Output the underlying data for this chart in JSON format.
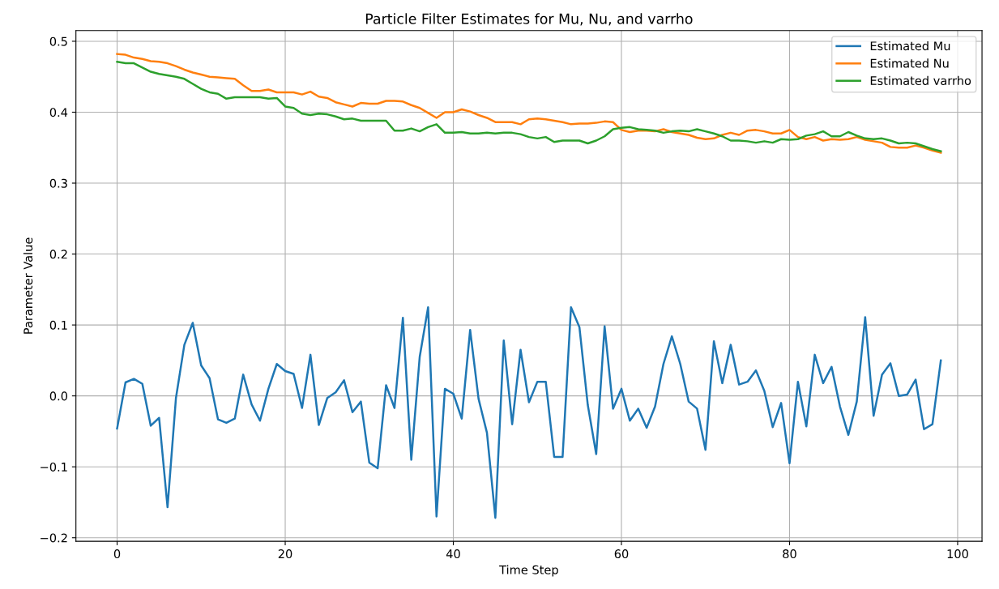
{
  "chart_data": {
    "type": "line",
    "title": "Particle Filter Estimates for Mu, Nu, and varrho",
    "xlabel": "Time Step",
    "ylabel": "Parameter Value",
    "x": [
      0,
      1,
      2,
      3,
      4,
      5,
      6,
      7,
      8,
      9,
      10,
      11,
      12,
      13,
      14,
      15,
      16,
      17,
      18,
      19,
      20,
      21,
      22,
      23,
      24,
      25,
      26,
      27,
      28,
      29,
      30,
      31,
      32,
      33,
      34,
      35,
      36,
      37,
      38,
      39,
      40,
      41,
      42,
      43,
      44,
      45,
      46,
      47,
      48,
      49,
      50,
      51,
      52,
      53,
      54,
      55,
      56,
      57,
      58,
      59,
      60,
      61,
      62,
      63,
      64,
      65,
      66,
      67,
      68,
      69,
      70,
      71,
      72,
      73,
      74,
      75,
      76,
      77,
      78,
      79,
      80,
      81,
      82,
      83,
      84,
      85,
      86,
      87,
      88,
      89,
      90,
      91,
      92,
      93,
      94,
      95,
      96,
      97,
      98
    ],
    "series": [
      {
        "name": "Estimated Mu",
        "color": "#1f77b4",
        "values": [
          -0.046,
          0.019,
          0.024,
          0.017,
          -0.042,
          -0.031,
          -0.157,
          -0.003,
          0.072,
          0.103,
          0.043,
          0.025,
          -0.033,
          -0.038,
          -0.032,
          0.03,
          -0.012,
          -0.035,
          0.01,
          0.045,
          0.035,
          0.031,
          -0.017,
          0.058,
          -0.041,
          -0.003,
          0.005,
          0.022,
          -0.023,
          -0.008,
          -0.094,
          -0.102,
          0.015,
          -0.017,
          0.11,
          -0.09,
          0.055,
          0.125,
          -0.17,
          0.01,
          0.003,
          -0.032,
          0.093,
          -0.004,
          -0.052,
          -0.172,
          0.078,
          -0.04,
          0.065,
          -0.009,
          0.02,
          0.02,
          -0.086,
          -0.086,
          0.125,
          0.097,
          -0.013,
          -0.082,
          0.098,
          -0.018,
          0.01,
          -0.035,
          -0.018,
          -0.045,
          -0.015,
          0.045,
          0.084,
          0.045,
          -0.008,
          -0.018,
          -0.076,
          0.077,
          0.018,
          0.072,
          0.016,
          0.02,
          0.036,
          0.007,
          -0.044,
          -0.01,
          -0.095,
          0.02,
          -0.043,
          0.058,
          0.018,
          0.041,
          -0.015,
          -0.055,
          -0.008,
          0.111,
          -0.028,
          0.03,
          0.046,
          0.0,
          0.002,
          0.023,
          -0.047,
          -0.04,
          0.05
        ]
      },
      {
        "name": "Estimated Nu",
        "color": "#ff7f0e",
        "values": [
          0.482,
          0.481,
          0.477,
          0.475,
          0.472,
          0.471,
          0.469,
          0.465,
          0.46,
          0.456,
          0.453,
          0.45,
          0.449,
          0.448,
          0.447,
          0.438,
          0.43,
          0.43,
          0.432,
          0.428,
          0.428,
          0.428,
          0.425,
          0.429,
          0.422,
          0.42,
          0.414,
          0.411,
          0.408,
          0.413,
          0.412,
          0.412,
          0.416,
          0.416,
          0.415,
          0.41,
          0.406,
          0.399,
          0.392,
          0.4,
          0.4,
          0.404,
          0.401,
          0.396,
          0.392,
          0.386,
          0.386,
          0.386,
          0.383,
          0.39,
          0.391,
          0.39,
          0.388,
          0.386,
          0.383,
          0.384,
          0.384,
          0.385,
          0.387,
          0.386,
          0.375,
          0.372,
          0.374,
          0.374,
          0.373,
          0.376,
          0.372,
          0.37,
          0.368,
          0.364,
          0.362,
          0.363,
          0.368,
          0.371,
          0.368,
          0.374,
          0.375,
          0.373,
          0.37,
          0.37,
          0.375,
          0.365,
          0.362,
          0.365,
          0.36,
          0.362,
          0.361,
          0.362,
          0.365,
          0.361,
          0.359,
          0.357,
          0.351,
          0.35,
          0.35,
          0.353,
          0.35,
          0.346,
          0.343
        ]
      },
      {
        "name": "Estimated varrho",
        "color": "#2ca02c",
        "values": [
          0.471,
          0.469,
          0.469,
          0.463,
          0.457,
          0.454,
          0.452,
          0.45,
          0.447,
          0.44,
          0.433,
          0.428,
          0.426,
          0.419,
          0.421,
          0.421,
          0.421,
          0.421,
          0.419,
          0.42,
          0.408,
          0.406,
          0.398,
          0.396,
          0.398,
          0.397,
          0.394,
          0.39,
          0.391,
          0.388,
          0.388,
          0.388,
          0.388,
          0.374,
          0.374,
          0.377,
          0.373,
          0.379,
          0.383,
          0.371,
          0.371,
          0.372,
          0.37,
          0.37,
          0.371,
          0.37,
          0.371,
          0.371,
          0.369,
          0.365,
          0.363,
          0.365,
          0.358,
          0.36,
          0.36,
          0.36,
          0.356,
          0.36,
          0.366,
          0.376,
          0.378,
          0.379,
          0.376,
          0.375,
          0.374,
          0.371,
          0.373,
          0.374,
          0.373,
          0.376,
          0.373,
          0.37,
          0.366,
          0.36,
          0.36,
          0.359,
          0.357,
          0.359,
          0.357,
          0.362,
          0.361,
          0.362,
          0.367,
          0.369,
          0.373,
          0.366,
          0.366,
          0.372,
          0.367,
          0.363,
          0.362,
          0.363,
          0.36,
          0.356,
          0.357,
          0.356,
          0.352,
          0.348,
          0.345
        ]
      }
    ],
    "xlim": [
      -4.9,
      102.9
    ],
    "ylim": [
      -0.205,
      0.515
    ],
    "xticks": [
      0,
      20,
      40,
      60,
      80,
      100
    ],
    "yticks": [
      {
        "value": -0.2,
        "label": "−0.2"
      },
      {
        "value": -0.1,
        "label": "−0.1"
      },
      {
        "value": 0.0,
        "label": "0.0"
      },
      {
        "value": 0.1,
        "label": "0.1"
      },
      {
        "value": 0.2,
        "label": "0.2"
      },
      {
        "value": 0.3,
        "label": "0.3"
      },
      {
        "value": 0.4,
        "label": "0.4"
      },
      {
        "value": 0.5,
        "label": "0.5"
      }
    ],
    "grid": true,
    "legend": "top right",
    "marker": "none",
    "line_style": "solid"
  }
}
